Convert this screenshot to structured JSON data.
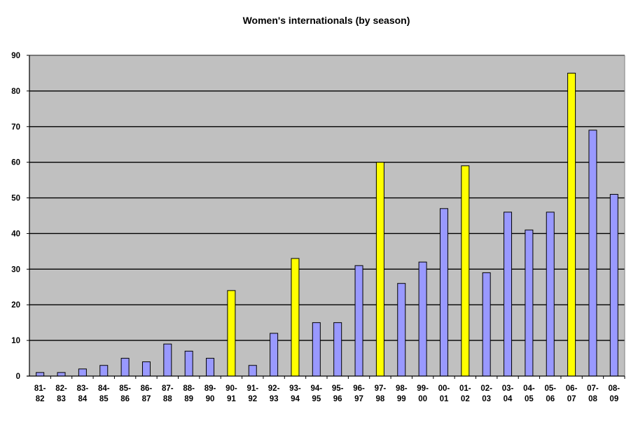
{
  "chart_data": {
    "type": "bar",
    "title": "Women's internationals (by season)",
    "xlabel": "",
    "ylabel": "",
    "ylim": [
      0,
      90
    ],
    "yticks": [
      0,
      10,
      20,
      30,
      40,
      50,
      60,
      70,
      80,
      90
    ],
    "grid": true,
    "legend": "none",
    "colors": {
      "default": "#9999FF",
      "highlight": "#FFFF00",
      "plot_bg": "#C0C0C0",
      "stroke": "#000000"
    },
    "categories": [
      [
        "81-",
        "82"
      ],
      [
        "82-",
        "83"
      ],
      [
        "83-",
        "84"
      ],
      [
        "84-",
        "85"
      ],
      [
        "85-",
        "86"
      ],
      [
        "86-",
        "87"
      ],
      [
        "87-",
        "88"
      ],
      [
        "88-",
        "89"
      ],
      [
        "89-",
        "90"
      ],
      [
        "90-",
        "91"
      ],
      [
        "91-",
        "92"
      ],
      [
        "92-",
        "93"
      ],
      [
        "93-",
        "94"
      ],
      [
        "94-",
        "95"
      ],
      [
        "95-",
        "96"
      ],
      [
        "96-",
        "97"
      ],
      [
        "97-",
        "98"
      ],
      [
        "98-",
        "99"
      ],
      [
        "99-",
        "00"
      ],
      [
        "00-",
        "01"
      ],
      [
        "01-",
        "02"
      ],
      [
        "02-",
        "03"
      ],
      [
        "03-",
        "04"
      ],
      [
        "04-",
        "05"
      ],
      [
        "05-",
        "06"
      ],
      [
        "06-",
        "07"
      ],
      [
        "07-",
        "08"
      ],
      [
        "08-",
        "09"
      ]
    ],
    "values": [
      1,
      1,
      2,
      3,
      5,
      4,
      9,
      7,
      5,
      24,
      3,
      12,
      33,
      15,
      15,
      31,
      60,
      26,
      32,
      47,
      59,
      29,
      46,
      41,
      46,
      85,
      69,
      51
    ],
    "highlighted": [
      false,
      false,
      false,
      false,
      false,
      false,
      false,
      false,
      false,
      true,
      false,
      false,
      true,
      false,
      false,
      false,
      true,
      false,
      false,
      false,
      true,
      false,
      false,
      false,
      false,
      true,
      false,
      false
    ]
  }
}
